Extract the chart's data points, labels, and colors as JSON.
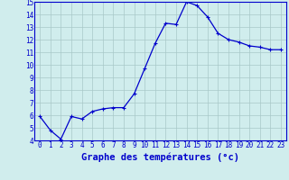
{
  "hours": [
    0,
    1,
    2,
    3,
    4,
    5,
    6,
    7,
    8,
    9,
    10,
    11,
    12,
    13,
    14,
    15,
    16,
    17,
    18,
    19,
    20,
    21,
    22,
    23
  ],
  "temps": [
    5.9,
    4.8,
    4.1,
    5.9,
    5.7,
    6.3,
    6.5,
    6.6,
    6.6,
    7.7,
    9.7,
    11.7,
    13.3,
    13.2,
    15.0,
    14.7,
    13.8,
    12.5,
    12.0,
    11.8,
    11.5,
    11.4,
    11.2,
    11.2
  ],
  "line_color": "#0000cc",
  "marker": "+",
  "marker_size": 3,
  "linewidth": 0.9,
  "bg_color": "#d0eded",
  "grid_color": "#a8c8c8",
  "axis_label_color": "#0000cc",
  "tick_label_color": "#0000cc",
  "xlabel": "Graphe des températures (°c)",
  "xlim": [
    -0.5,
    23.5
  ],
  "ylim": [
    4,
    15
  ],
  "yticks": [
    4,
    5,
    6,
    7,
    8,
    9,
    10,
    11,
    12,
    13,
    14,
    15
  ],
  "xticks": [
    0,
    1,
    2,
    3,
    4,
    5,
    6,
    7,
    8,
    9,
    10,
    11,
    12,
    13,
    14,
    15,
    16,
    17,
    18,
    19,
    20,
    21,
    22,
    23
  ],
  "xlabel_fontsize": 7.5,
  "tick_fontsize": 5.5
}
